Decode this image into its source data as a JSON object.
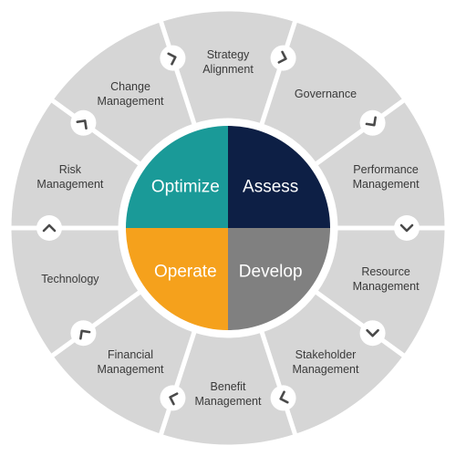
{
  "diagram": {
    "colors": {
      "ring": "#d6d6d6",
      "divider": "#ffffff",
      "text": "#3a3a3a",
      "chevron": "#4a4a4a"
    },
    "ring_segments": [
      {
        "id": "strategy-alignment",
        "lines": [
          "Strategy",
          "Alignment"
        ]
      },
      {
        "id": "governance",
        "lines": [
          "Governance"
        ]
      },
      {
        "id": "performance-management",
        "lines": [
          "Performance",
          "Management"
        ]
      },
      {
        "id": "resource-management",
        "lines": [
          "Resource",
          "Management"
        ]
      },
      {
        "id": "stakeholder-management",
        "lines": [
          "Stakeholder",
          "Management"
        ]
      },
      {
        "id": "benefit-management",
        "lines": [
          "Benefit",
          "Management"
        ]
      },
      {
        "id": "financial-management",
        "lines": [
          "Financial",
          "Management"
        ]
      },
      {
        "id": "technology",
        "lines": [
          "Technology"
        ]
      },
      {
        "id": "risk-management",
        "lines": [
          "Risk",
          "Management"
        ]
      },
      {
        "id": "change-management",
        "lines": [
          "Change",
          "Management"
        ]
      }
    ],
    "core": [
      {
        "id": "assess",
        "label": "Assess",
        "color": "#0d1f45"
      },
      {
        "id": "develop",
        "label": "Develop",
        "color": "#808080"
      },
      {
        "id": "operate",
        "label": "Operate",
        "color": "#f5a11c"
      },
      {
        "id": "optimize",
        "label": "Optimize",
        "color": "#1a9a98"
      }
    ],
    "chevron_icons": [
      "chevron-right-icon",
      "chevron-right-icon",
      "chevron-right-icon",
      "chevron-down-icon",
      "chevron-right-icon",
      "chevron-right-icon",
      "chevron-right-icon",
      "chevron-up-icon",
      "chevron-right-icon",
      "chevron-right-icon"
    ]
  }
}
